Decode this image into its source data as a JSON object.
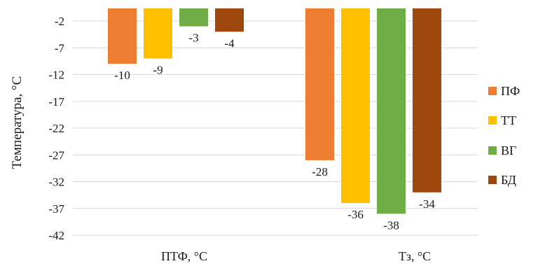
{
  "chart_data": {
    "type": "bar",
    "categories": [
      "ПТФ, °C",
      "Тз, °C"
    ],
    "series": [
      {
        "name": "ПФ",
        "color": "#ED7D31",
        "values": [
          -10,
          -28
        ]
      },
      {
        "name": "ТТ",
        "color": "#FFC000",
        "values": [
          -9,
          -36
        ]
      },
      {
        "name": "ВГ",
        "color": "#70AD47",
        "values": [
          -3,
          -38
        ]
      },
      {
        "name": "БД",
        "color": "#9E480E",
        "values": [
          -4,
          -34
        ]
      }
    ],
    "title": "",
    "xlabel": "",
    "ylabel": "Температура, °C",
    "yticks": [
      -2,
      -7,
      -12,
      -17,
      -22,
      -27,
      -32,
      -37,
      -42
    ],
    "ylim": [
      -42,
      -2
    ],
    "bar_base": 0,
    "grid": true,
    "legend_position": "right"
  }
}
